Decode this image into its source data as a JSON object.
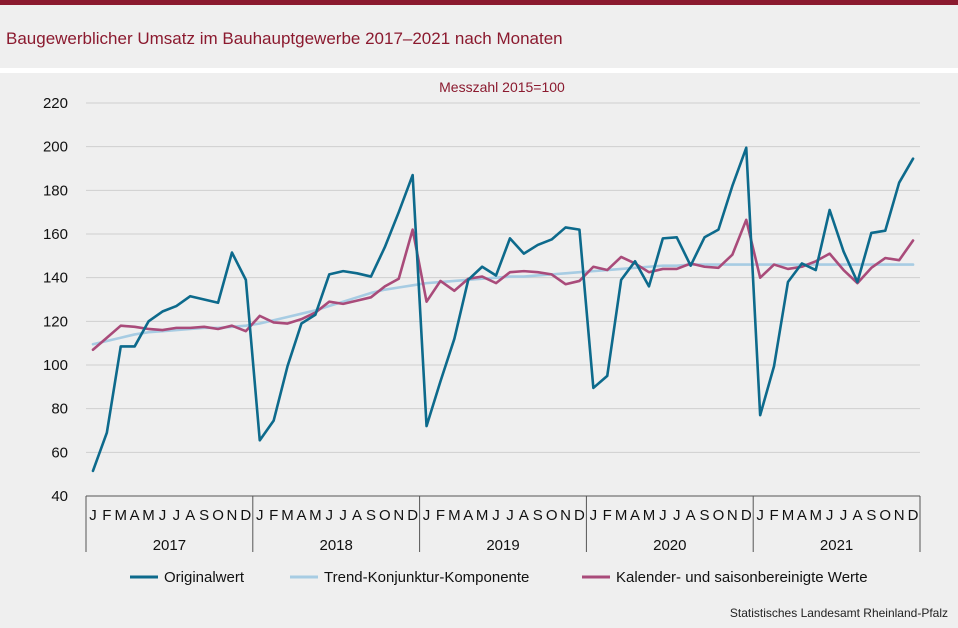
{
  "header": {
    "title": "Baugewerblicher Umsatz im Bauhauptgewerbe 2017–2021 nach Monaten"
  },
  "footer": {
    "source": "Statistisches Landesamt Rheinland-Pfalz"
  },
  "chart_data": {
    "type": "line",
    "subtitle": "Messzahl 2015=100",
    "ylim": [
      40,
      220
    ],
    "yticks": [
      40,
      60,
      80,
      100,
      120,
      140,
      160,
      180,
      200,
      220
    ],
    "grid": true,
    "legend_position": "bottom",
    "month_labels": [
      "J",
      "F",
      "M",
      "A",
      "M",
      "J",
      "J",
      "A",
      "S",
      "O",
      "N",
      "D"
    ],
    "years": [
      "2017",
      "2018",
      "2019",
      "2020",
      "2021"
    ],
    "series": [
      {
        "name": "Originalwert",
        "color": "#0d6a8c",
        "values": [
          51.5,
          69,
          108.5,
          108.5,
          120,
          124.5,
          127,
          131.5,
          130,
          128.5,
          151.5,
          139,
          65.5,
          74.5,
          99.5,
          119,
          123,
          141.5,
          143,
          142,
          140.5,
          154,
          170,
          187,
          72,
          92.5,
          112,
          139,
          145,
          141,
          158,
          151,
          155,
          157.5,
          163,
          162,
          89.5,
          95,
          139,
          147.5,
          136,
          158,
          158.5,
          145.5,
          158.5,
          162,
          182,
          199.5,
          77,
          99.5,
          138,
          146.5,
          143.5,
          171,
          152,
          138,
          160.5,
          161.5,
          183.5,
          194.5
        ]
      },
      {
        "name": "Trend-Konjunktur-Komponente",
        "color": "#a7cce3",
        "values": [
          109.5,
          111,
          112.5,
          114,
          115,
          115.5,
          116,
          116.5,
          117,
          117,
          117.5,
          118,
          119,
          120.5,
          122,
          123.5,
          125,
          127,
          129,
          131,
          133,
          134.5,
          135.5,
          136.5,
          137.5,
          138,
          138.5,
          139,
          139.5,
          140,
          140.5,
          140.5,
          141,
          141.5,
          142,
          142.5,
          143,
          143.5,
          144,
          144.5,
          145,
          145.5,
          145.5,
          146,
          146,
          146,
          146,
          146,
          146,
          146,
          146,
          146,
          146,
          146,
          146,
          146,
          146,
          146,
          146,
          146
        ]
      },
      {
        "name": "Kalender- und saisonbereinigte Werte",
        "color": "#a94b7a",
        "values": [
          107,
          112.5,
          118,
          117.5,
          116.5,
          116,
          117,
          117,
          117.5,
          116.5,
          118,
          115.5,
          122.5,
          119.5,
          119,
          121,
          124,
          129,
          128,
          129.5,
          131,
          136,
          139.5,
          162,
          129,
          138.5,
          134,
          139.5,
          140.5,
          137.5,
          142.5,
          143,
          142.5,
          141.5,
          137,
          138.5,
          145,
          143.5,
          149.5,
          146.5,
          142.5,
          144,
          144,
          146.5,
          145,
          144.5,
          150.5,
          166.5,
          140,
          146,
          144,
          145,
          147.5,
          151,
          143.5,
          137.5,
          144.5,
          149,
          148,
          157
        ]
      }
    ]
  }
}
